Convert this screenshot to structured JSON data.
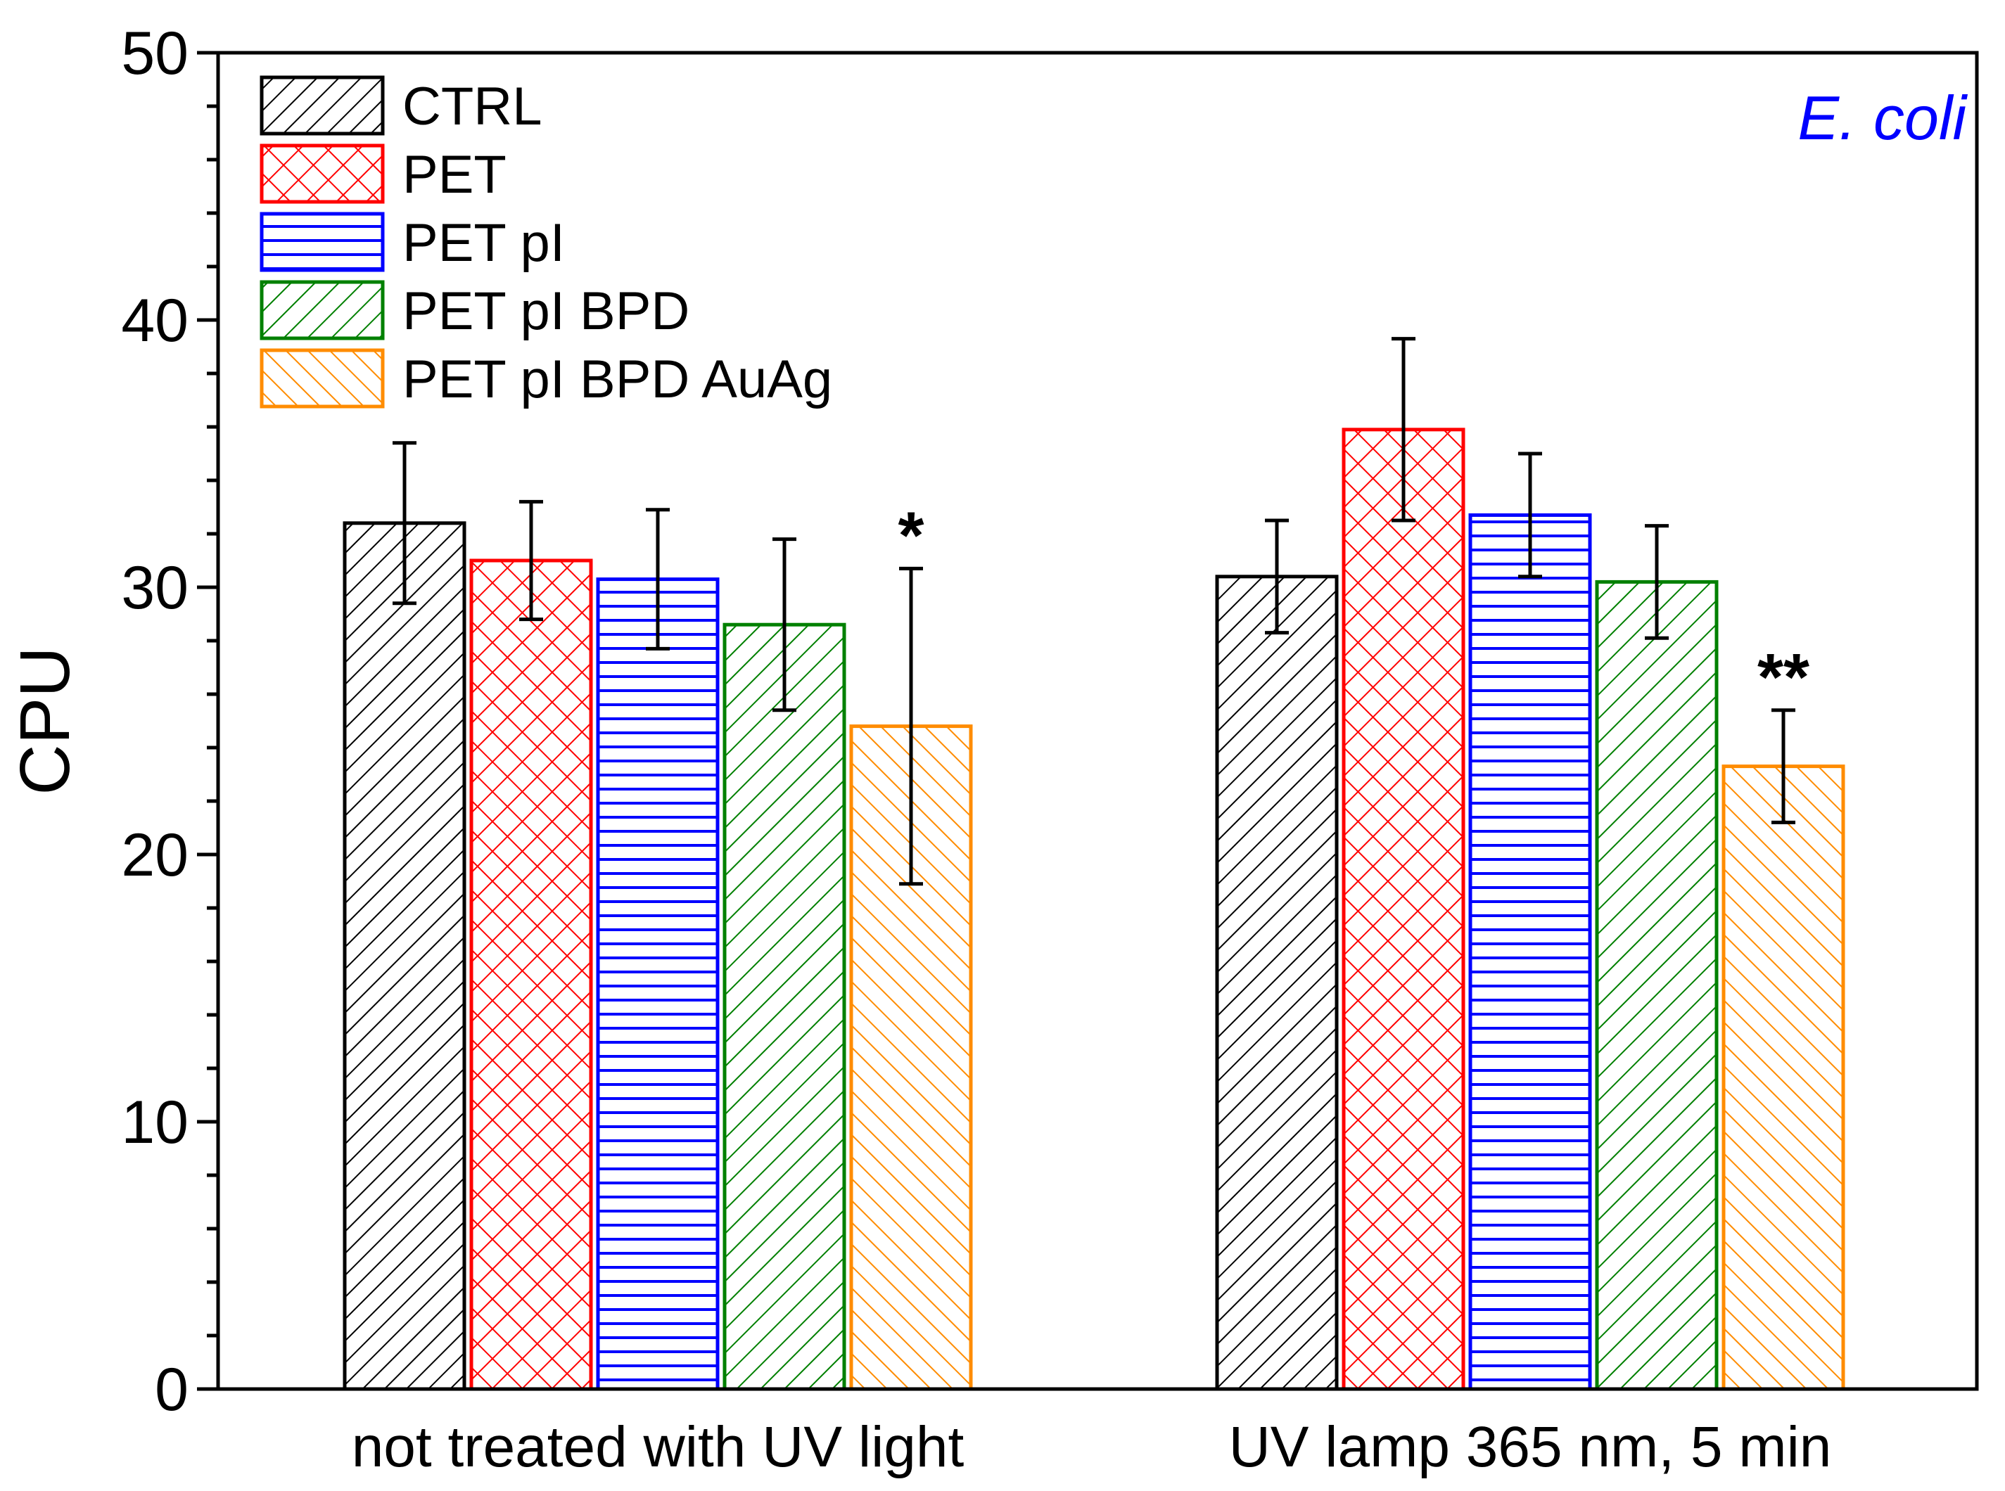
{
  "chart_data": {
    "type": "bar",
    "title": "",
    "annotation": "E. coli",
    "xlabel": "",
    "ylabel": "CPU",
    "ylim": [
      0,
      50
    ],
    "yticks": [
      "0",
      "10",
      "20",
      "30",
      "40",
      "50"
    ],
    "grid": false,
    "legend_position": "top-left",
    "categories": [
      "not treated with UV light",
      "UV lamp 365 nm, 5 min"
    ],
    "series": [
      {
        "name": "CTRL",
        "color": "#000000",
        "pattern": "diag-right",
        "values": [
          32.4,
          30.4
        ],
        "errors": [
          3.0,
          2.1
        ]
      },
      {
        "name": "PET",
        "color": "#ff0000",
        "pattern": "crosshatch",
        "values": [
          31.0,
          35.9
        ],
        "errors": [
          2.2,
          3.4
        ]
      },
      {
        "name": "PET pI",
        "color": "#0000ff",
        "pattern": "horizontal",
        "values": [
          30.3,
          32.7
        ],
        "errors": [
          2.6,
          2.3
        ]
      },
      {
        "name": "PET pI BPD",
        "color": "#008000",
        "pattern": "diag-right",
        "values": [
          28.6,
          30.2
        ],
        "errors": [
          3.2,
          2.1
        ]
      },
      {
        "name": "PET pI BPD AuAg",
        "color": "#ff8c00",
        "pattern": "diag-left",
        "values": [
          24.8,
          23.3
        ],
        "errors": [
          5.9,
          2.1
        ]
      }
    ],
    "significance": [
      {
        "label": "*",
        "category": 0,
        "series": 4
      },
      {
        "label": "**",
        "category": 1,
        "series": 4
      }
    ]
  }
}
